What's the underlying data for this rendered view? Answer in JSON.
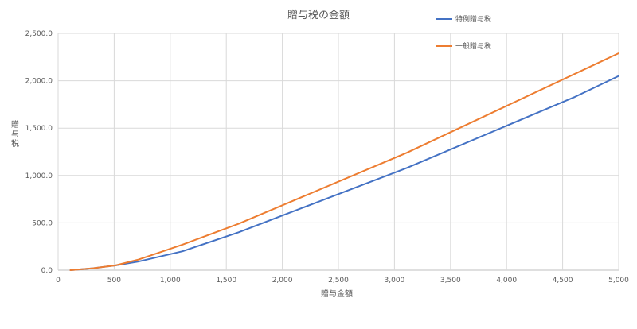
{
  "chart_data": {
    "type": "line",
    "title": "贈与税の金額",
    "xlabel": "贈与金額",
    "ylabel": "贈与税",
    "xlim": [
      0,
      5000
    ],
    "ylim": [
      0,
      2500
    ],
    "x_ticks": [
      0,
      500,
      1000,
      1500,
      2000,
      2500,
      3000,
      3500,
      4000,
      4500,
      5000
    ],
    "x_tick_labels": [
      "0",
      "500",
      "1,000",
      "1,500",
      "2,000",
      "2,500",
      "3,000",
      "3,500",
      "4,000",
      "4,500",
      "5,000"
    ],
    "y_ticks": [
      0,
      500,
      1000,
      1500,
      2000,
      2500
    ],
    "y_tick_labels": [
      "0.0",
      "500.0",
      "1,000.0",
      "1,500.0",
      "2,000.0",
      "2,500.0"
    ],
    "grid": true,
    "legend_position": "top-right",
    "series": [
      {
        "name": "特例贈与税",
        "color": "#4472c4",
        "x": [
          110,
          310,
          510,
          710,
          1110,
          1610,
          3110,
          4610,
          5000
        ],
        "y": [
          0,
          20,
          50,
          90,
          200,
          400,
          1080,
          1830,
          2050
        ]
      },
      {
        "name": "一般贈与税",
        "color": "#ed7d31",
        "x": [
          110,
          310,
          510,
          710,
          1110,
          1610,
          3110,
          5000
        ],
        "y": [
          0,
          20,
          50,
          110,
          270,
          490,
          1240,
          2290
        ]
      }
    ]
  }
}
